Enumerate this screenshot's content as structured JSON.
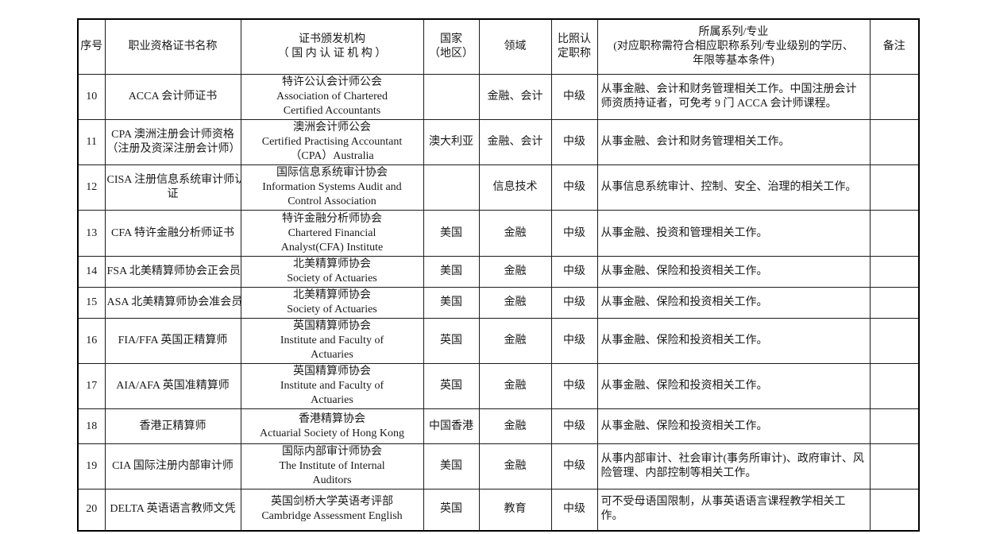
{
  "document": {
    "accent_color": "#1a1a1a",
    "background_color": "#ffffff"
  },
  "table": {
    "column_keys": [
      "no",
      "name",
      "issuer",
      "country",
      "field",
      "title",
      "series",
      "remark"
    ],
    "headers": [
      {
        "key": "no",
        "lines": [
          "序号"
        ]
      },
      {
        "key": "name",
        "lines": [
          "职业资格证书名称"
        ]
      },
      {
        "key": "issuer",
        "lines": [
          "证书颁发机构",
          "（ 国 内 认 证 机 构 ）"
        ]
      },
      {
        "key": "country",
        "lines": [
          "国家",
          "（地区）"
        ]
      },
      {
        "key": "field",
        "lines": [
          "领域"
        ]
      },
      {
        "key": "title",
        "lines": [
          "比照认",
          "定职称"
        ]
      },
      {
        "key": "series",
        "lines": [
          "所属系列/专业",
          "(对应职称需符合相应职称系列/专业级别的学历、",
          "年限等基本条件)"
        ]
      },
      {
        "key": "remark",
        "lines": [
          "备注"
        ]
      }
    ],
    "rows": [
      {
        "no": "10",
        "name_lines": [
          "ACCA 会计师证书"
        ],
        "issuer_lines": [
          "特许公认会计师公会",
          "Association of Chartered",
          "Certified Accountants"
        ],
        "country": "",
        "field": "金融、会计",
        "title": "中级",
        "series": "从事金融、会计和财务管理相关工作。中国注册会计师资质持证者，可免考 9 门 ACCA 会计师课程。",
        "remark": ""
      },
      {
        "no": "11",
        "name_lines": [
          "CPA 澳洲注册会计师资格",
          "（注册及资深注册会计师）"
        ],
        "issuer_lines": [
          "澳洲会计师公会",
          "Certified Practising Accountant",
          "（CPA）Australia"
        ],
        "country": "澳大利亚",
        "field": "金融、会计",
        "title": "中级",
        "series": "从事金融、会计和财务管理相关工作。",
        "remark": ""
      },
      {
        "no": "12",
        "name_lines": [
          "CISA 注册信息系统审计师认",
          "证"
        ],
        "issuer_lines": [
          "国际信息系统审计协会",
          "Information Systems Audit and",
          "Control Association"
        ],
        "country": "",
        "field": "信息技术",
        "title": "中级",
        "series": "从事信息系统审计、控制、安全、治理的相关工作。",
        "remark": ""
      },
      {
        "no": "13",
        "name_lines": [
          "CFA 特许金融分析师证书"
        ],
        "issuer_lines": [
          "特许金融分析师协会",
          "Chartered Financial",
          "Analyst(CFA) Institute"
        ],
        "country": "美国",
        "field": "金融",
        "title": "中级",
        "series": "从事金融、投资和管理相关工作。",
        "remark": ""
      },
      {
        "no": "14",
        "name_lines": [
          "FSA 北美精算师协会正会员"
        ],
        "issuer_lines": [
          "北美精算师协会",
          "Society of Actuaries"
        ],
        "country": "美国",
        "field": "金融",
        "title": "中级",
        "series": "从事金融、保险和投资相关工作。",
        "remark": ""
      },
      {
        "no": "15",
        "name_lines": [
          "ASA 北美精算师协会准会员"
        ],
        "issuer_lines": [
          "北美精算师协会",
          "Society of Actuaries"
        ],
        "country": "美国",
        "field": "金融",
        "title": "中级",
        "series": "从事金融、保险和投资相关工作。",
        "remark": ""
      },
      {
        "no": "16",
        "name_lines": [
          "FIA/FFA 英国正精算师"
        ],
        "issuer_lines": [
          "英国精算师协会",
          "Institute and Faculty of",
          "Actuaries"
        ],
        "country": "英国",
        "field": "金融",
        "title": "中级",
        "series": "从事金融、保险和投资相关工作。",
        "remark": ""
      },
      {
        "no": "17",
        "name_lines": [
          "AIA/AFA 英国准精算师"
        ],
        "issuer_lines": [
          "英国精算师协会",
          "Institute and Faculty of",
          "Actuaries"
        ],
        "country": "英国",
        "field": "金融",
        "title": "中级",
        "series": "从事金融、保险和投资相关工作。",
        "remark": ""
      },
      {
        "no": "18",
        "name_lines": [
          "香港正精算师"
        ],
        "issuer_lines": [
          "香港精算协会",
          "Actuarial Society of Hong Kong"
        ],
        "country": "中国香港",
        "field": "金融",
        "title": "中级",
        "series": "从事金融、保险和投资相关工作。",
        "remark": ""
      },
      {
        "no": "19",
        "name_lines": [
          "CIA 国际注册内部审计师"
        ],
        "issuer_lines": [
          "国际内部审计师协会",
          "The Institute of Internal",
          "Auditors"
        ],
        "country": "美国",
        "field": "金融",
        "title": "中级",
        "series": "从事内部审计、社会审计(事务所审计)、政府审计、风险管理、内部控制等相关工作。",
        "remark": ""
      },
      {
        "no": "20",
        "name_lines": [
          "DELTA 英语语言教师文凭"
        ],
        "issuer_lines": [
          "英国剑桥大学英语考评部",
          "Cambridge Assessment English"
        ],
        "country": "英国",
        "field": "教育",
        "title": "中级",
        "series": "可不受母语国限制，从事英语语言课程教学相关工作。",
        "remark": ""
      }
    ]
  }
}
